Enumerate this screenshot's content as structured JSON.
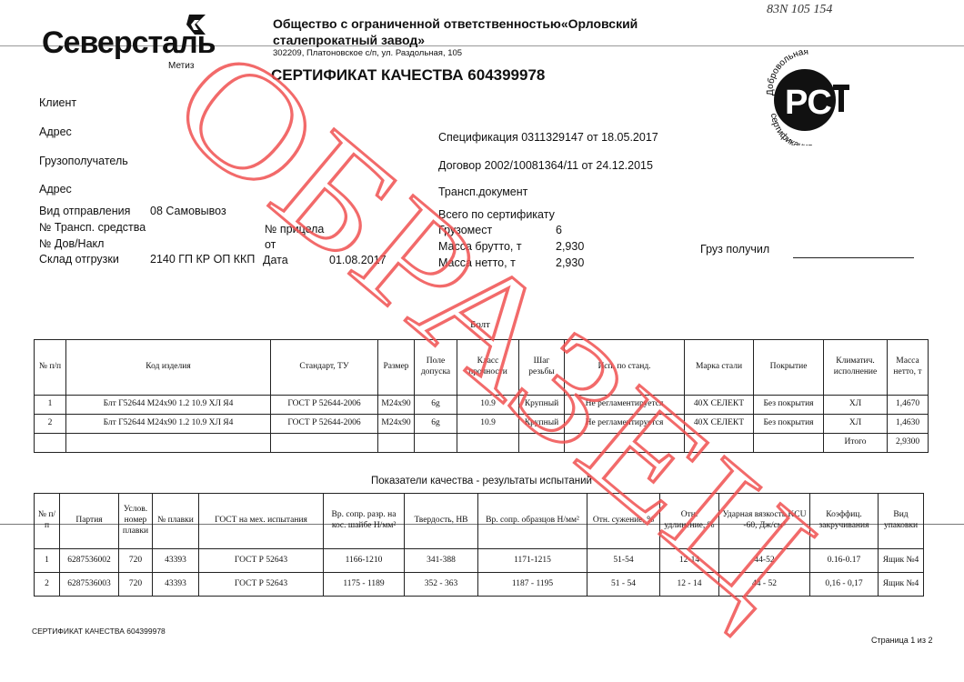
{
  "header": {
    "logo_text": "Северсталь",
    "logo_sub": "Метиз",
    "company_line1": "Общество с ограниченной ответственностью«Орловский",
    "company_line2": "сталепрокатный завод»",
    "address": "302209, Платоновское с/п, ул. Раздольная, 105",
    "title": "СЕРТИФИКАТ КАЧЕСТВА 604399978",
    "handwritten": "83N 105 154",
    "cert_mark_top": "Добровольная",
    "cert_mark_bottom": "сертификация",
    "cert_mark_letters": "РСТ"
  },
  "watermark": "ОБРАЗЕЦ",
  "left_fields": {
    "client": "Клиент",
    "address1": "Адрес",
    "consignee": "Грузополучатель",
    "address2": "Адрес",
    "shipping_type_label": "Вид отправления",
    "shipping_type_value": "08 Самовывоз",
    "vehicle_label": "№ Трансп. средства",
    "trailer_label": "№ прицела",
    "waybill_label": "№ Дов/Накл",
    "from_label": "от",
    "warehouse_label": "Склад отгрузки",
    "warehouse_value": "2140 ГП КР ОП ККП",
    "date_label": "Дата",
    "date_value": "01.08.2017"
  },
  "right_fields": {
    "spec": "Спецификация  0311329147 от 18.05.2017",
    "contract": "Договор  2002/10081364/11 от 24.12.2015",
    "transport_doc": "Трансп.документ",
    "total_label": "Всего по сертификату",
    "places_label": "Грузомест",
    "places_value": "6",
    "gross_label": "Масса брутто, т",
    "gross_value": "2,930",
    "net_label": "Масса нетто, т",
    "net_value": "2,930",
    "received_label": "Груз получил"
  },
  "product_table": {
    "caption": "Болт",
    "headers": [
      "№ п/п",
      "Код изделия",
      "Стандарт, ТУ",
      "Размер",
      "Поле допуска",
      "Класс прочности",
      "Шаг резьбы",
      "Исп. по станд.",
      "Марка стали",
      "Покрытие",
      "Климатич. исполнение",
      "Масса нетто, т"
    ],
    "rows": [
      [
        "1",
        "Блт Г52644 М24х90 1.2 10.9 ХЛ Я4",
        "ГОСТ Р 52644-2006",
        "М24х90",
        "6g",
        "10.9",
        "Крупный",
        "Не регламентируется",
        "40Х СЕЛЕКТ",
        "Без покрытия",
        "ХЛ",
        "1,4670"
      ],
      [
        "2",
        "Блт Г52644 М24х90 1.2 10.9 ХЛ Я4",
        "ГОСТ Р 52644-2006",
        "М24х90",
        "6g",
        "10.9",
        "Крупный",
        "Не регламентируется",
        "40Х СЕЛЕКТ",
        "Без покрытия",
        "ХЛ",
        "1,4630"
      ]
    ],
    "total_label": "Итого",
    "total_value": "2,9300"
  },
  "quality_table": {
    "caption": "Показатели качества - результаты испытаний",
    "headers": [
      "№ п/п",
      "Партия",
      "Услов. номер плавки",
      "№ плавки",
      "ГОСТ на мех. испытания",
      "Вр. сопр. разр. на кос. шайбе Н/мм²",
      "Твердость, НВ",
      "Вр. сопр. образцов Н/мм²",
      "Отн. сужение, %",
      "Отн. удлинение, %",
      "Ударная вязкость KCU -60, Дж/см²",
      "Коэффиц. закручивания",
      "Вид упаковки"
    ],
    "rows": [
      [
        "1",
        "6287536002",
        "720",
        "43393",
        "ГОСТ Р 52643",
        "1166-1210",
        "341-388",
        "1171-1215",
        "51-54",
        "12-14",
        "44-52",
        "0.16-0.17",
        "Ящик №4"
      ],
      [
        "2",
        "6287536003",
        "720",
        "43393",
        "ГОСТ Р 52643",
        "1175 - 1189",
        "352 - 363",
        "1187 - 1195",
        "51 - 54",
        "12 - 14",
        "44 - 52",
        "0,16 - 0,17",
        "Ящик №4"
      ]
    ]
  },
  "footer": {
    "left": "СЕРТИФИКАТ КАЧЕСТВА 604399978",
    "right": "Страница 1 из 2"
  }
}
